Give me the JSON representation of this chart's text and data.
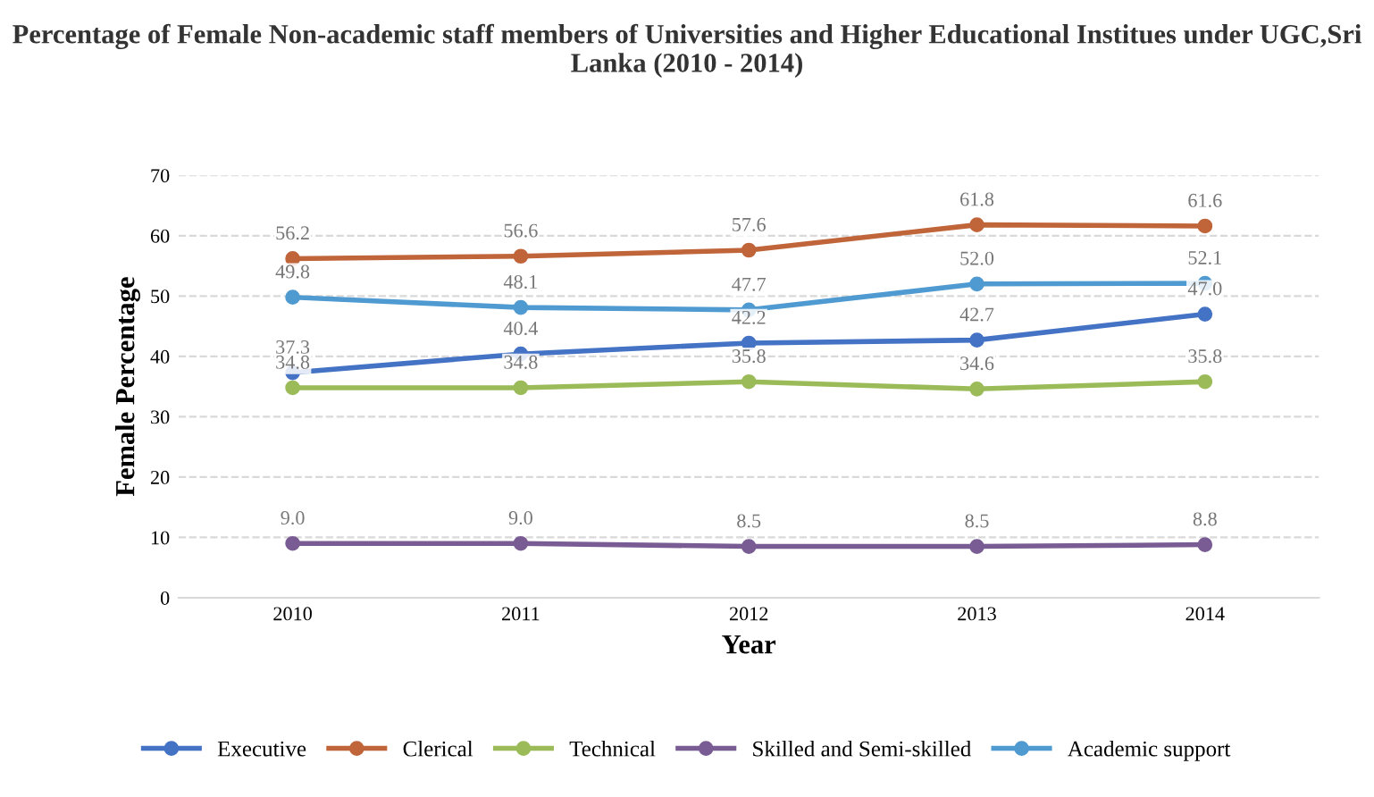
{
  "chart_data": {
    "type": "line",
    "title": "Percentage of Female Non-academic staff members of Universities and Higher Educational Institues under UGC,Sri Lanka (2010 - 2014)",
    "xlabel": "Year",
    "ylabel": "Female Percentage",
    "categories": [
      "2010",
      "2011",
      "2012",
      "2013",
      "2014"
    ],
    "series": [
      {
        "name": "Executive",
        "color": "#4472c4",
        "values": [
          37.3,
          40.4,
          42.2,
          42.7,
          47.0
        ],
        "value_labels": [
          "37.3",
          "40.4",
          "42.2",
          "42.7",
          "47.0"
        ]
      },
      {
        "name": "Clerical",
        "color": "#c0643a",
        "values": [
          56.2,
          56.6,
          57.6,
          61.8,
          61.6
        ],
        "value_labels": [
          "56.2",
          "56.6",
          "57.6",
          "61.8",
          "61.6"
        ]
      },
      {
        "name": "Technical",
        "color": "#9bbb59",
        "values": [
          34.8,
          34.8,
          35.8,
          34.6,
          35.8
        ],
        "value_labels": [
          "34.8",
          "34.8",
          "35.8",
          "34.6",
          "35.8"
        ]
      },
      {
        "name": "Skilled and Semi-skilled",
        "color": "#7a5c94",
        "values": [
          9.0,
          9.0,
          8.5,
          8.5,
          8.8
        ],
        "value_labels": [
          "9.0",
          "9.0",
          "8.5",
          "8.5",
          "8.8"
        ]
      },
      {
        "name": "Academic support",
        "color": "#4f9ad0",
        "values": [
          49.8,
          48.1,
          47.7,
          52.0,
          52.1
        ],
        "value_labels": [
          "49.8",
          "48.1",
          "47.7",
          "52.0",
          "52.1"
        ]
      }
    ],
    "ylim": [
      0,
      70
    ],
    "yticks": [
      0,
      10,
      20,
      30,
      40,
      50,
      60,
      70
    ],
    "grid": "y",
    "legend": "bottom",
    "marker": "circle",
    "line_style": "solid"
  }
}
